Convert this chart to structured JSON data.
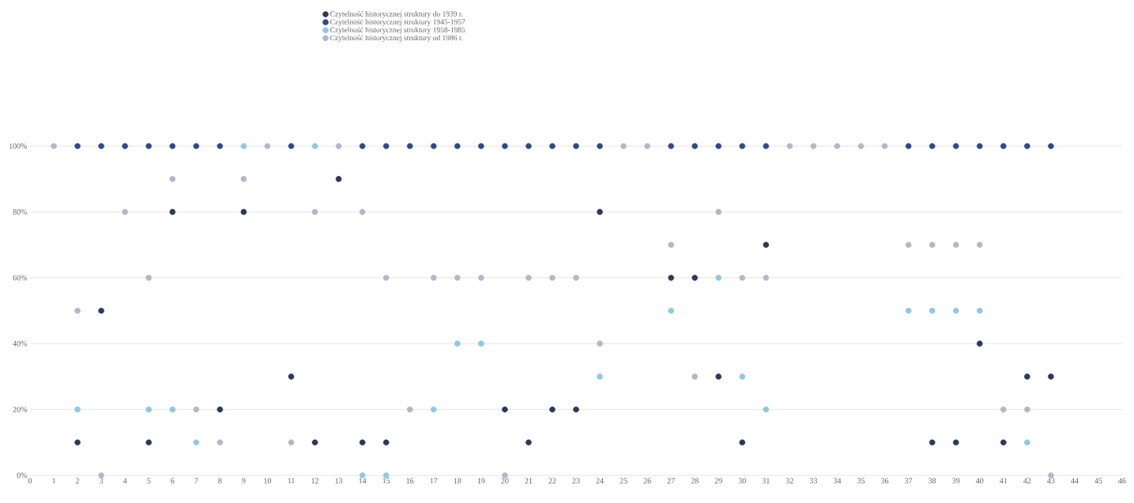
{
  "chart_data": {
    "type": "scatter",
    "x": [
      1,
      2,
      3,
      4,
      5,
      6,
      7,
      8,
      9,
      10,
      11,
      12,
      13,
      14,
      15,
      16,
      17,
      18,
      19,
      20,
      21,
      22,
      23,
      24,
      25,
      26,
      27,
      28,
      29,
      30,
      31,
      32,
      33,
      34,
      35,
      36,
      37,
      38,
      39,
      40,
      41,
      42,
      43
    ],
    "series": [
      {
        "name": "Czytelność historycznej struktury do 1939 r.",
        "color": "#2b3a55",
        "values": [
          null,
          10,
          50,
          null,
          10,
          80,
          null,
          20,
          80,
          null,
          30,
          10,
          90,
          10,
          10,
          null,
          null,
          null,
          null,
          20,
          10,
          20,
          20,
          80,
          null,
          null,
          60,
          60,
          30,
          10,
          70,
          null,
          null,
          null,
          null,
          null,
          null,
          10,
          10,
          40,
          10,
          30,
          30
        ]
      },
      {
        "name": "Czytelność historycznej struktury 1945-1957",
        "color": "#2f4b86",
        "values": [
          null,
          100,
          100,
          100,
          100,
          100,
          100,
          100,
          null,
          null,
          100,
          null,
          null,
          100,
          100,
          100,
          100,
          100,
          100,
          100,
          100,
          100,
          100,
          100,
          null,
          null,
          100,
          100,
          100,
          100,
          100,
          null,
          null,
          null,
          null,
          null,
          100,
          100,
          100,
          100,
          100,
          100,
          100
        ]
      },
      {
        "name": "Czytelność historycznej struktury 1958-1985",
        "color": "#8fc8e0",
        "values": [
          null,
          20,
          null,
          null,
          20,
          20,
          10,
          null,
          100,
          null,
          null,
          100,
          null,
          0,
          0,
          null,
          20,
          40,
          40,
          null,
          null,
          null,
          null,
          30,
          null,
          null,
          50,
          null,
          60,
          30,
          20,
          null,
          null,
          null,
          null,
          null,
          50,
          50,
          50,
          50,
          null,
          10,
          null
        ]
      },
      {
        "name": "Czytelność historycznej struktury od 1986 r.",
        "color": "#b7b5c8",
        "values": [
          100,
          50,
          0,
          80,
          60,
          90,
          20,
          10,
          90,
          100,
          10,
          80,
          100,
          80,
          60,
          20,
          60,
          60,
          60,
          0,
          60,
          60,
          60,
          40,
          100,
          100,
          70,
          30,
          80,
          60,
          60,
          100,
          100,
          100,
          100,
          100,
          70,
          70,
          70,
          70,
          20,
          20,
          0
        ]
      }
    ],
    "xlim": [
      0,
      46
    ],
    "xticks": [
      0,
      1,
      2,
      3,
      4,
      5,
      6,
      7,
      8,
      9,
      10,
      11,
      12,
      13,
      14,
      15,
      16,
      17,
      18,
      19,
      20,
      21,
      22,
      23,
      24,
      25,
      26,
      27,
      28,
      29,
      30,
      31,
      32,
      33,
      34,
      35,
      36,
      37,
      38,
      39,
      40,
      41,
      42,
      43,
      44,
      45,
      46
    ],
    "ylim": [
      0,
      100
    ],
    "yticks": [
      {
        "value": 0,
        "label": "0%"
      },
      {
        "value": 20,
        "label": "20%"
      },
      {
        "value": 40,
        "label": "40%"
      },
      {
        "value": 60,
        "label": "60%"
      },
      {
        "value": 80,
        "label": "80%"
      },
      {
        "value": 100,
        "label": "100%"
      }
    ],
    "grid": "y",
    "legend": "top"
  }
}
